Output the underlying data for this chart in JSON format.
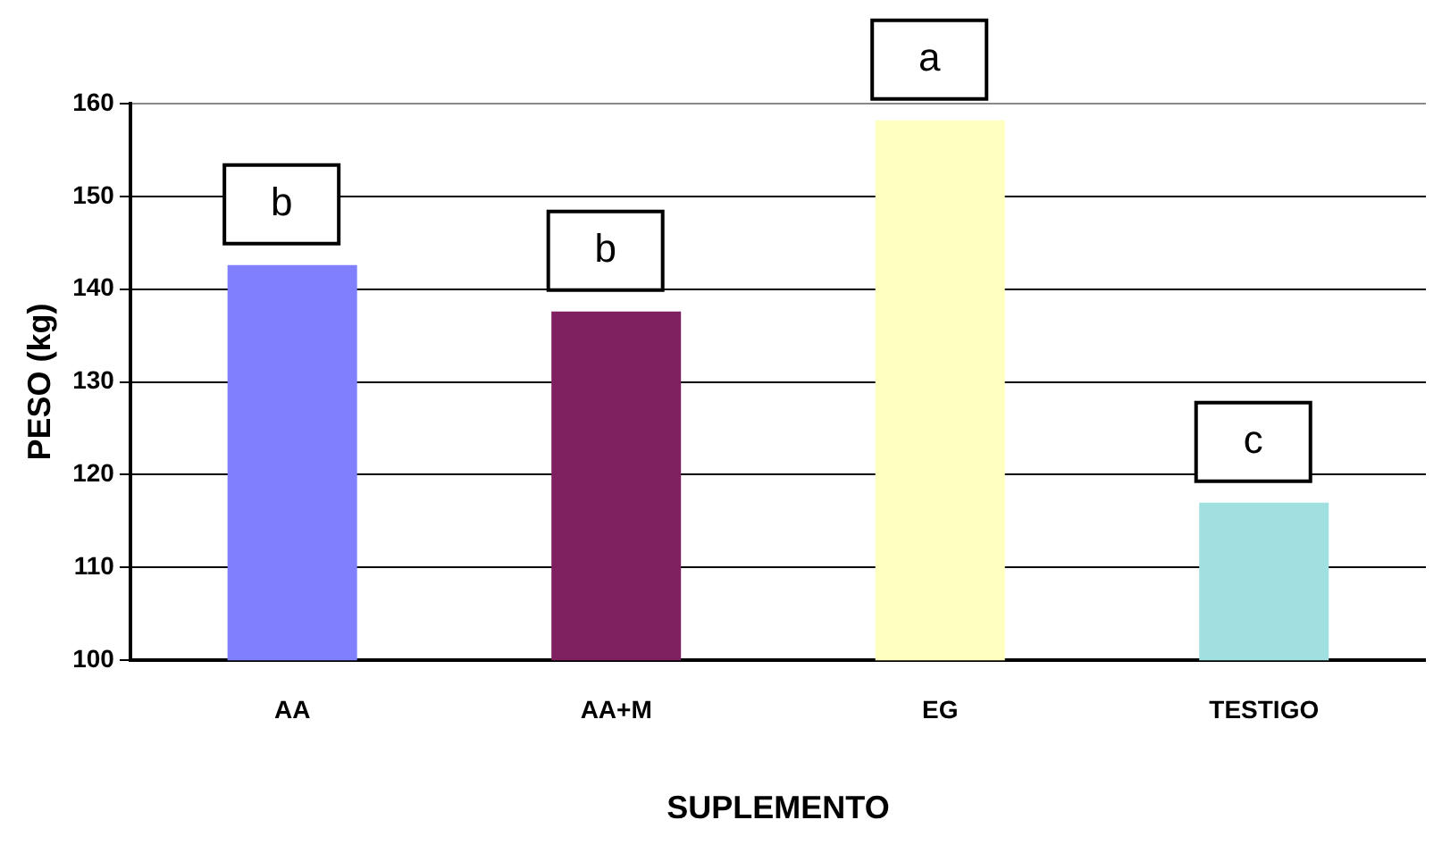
{
  "chart_data": {
    "type": "bar",
    "xlabel": "SUPLEMENTO",
    "ylabel": "PESO (kg)",
    "categories": [
      "AA",
      "AA+M",
      "EG",
      "TESTIGO"
    ],
    "values": [
      142.6,
      137.6,
      158.2,
      117
    ],
    "colors": [
      "#8080ff",
      "#7f2160",
      "#ffffc0",
      "#a0e0e0"
    ],
    "ylim": [
      100,
      160
    ],
    "yticks": [
      100,
      110,
      120,
      130,
      140,
      150,
      160
    ],
    "grid": "y",
    "legend": false,
    "annotations": [
      {
        "text": "b",
        "x": "AA",
        "y": 142.6
      },
      {
        "text": "b",
        "x": "AA+M",
        "y": 137.6
      },
      {
        "text": "a",
        "x": "EG",
        "y": 158.2
      },
      {
        "text": "c",
        "x": "TESTIGO",
        "y": 117
      }
    ]
  }
}
